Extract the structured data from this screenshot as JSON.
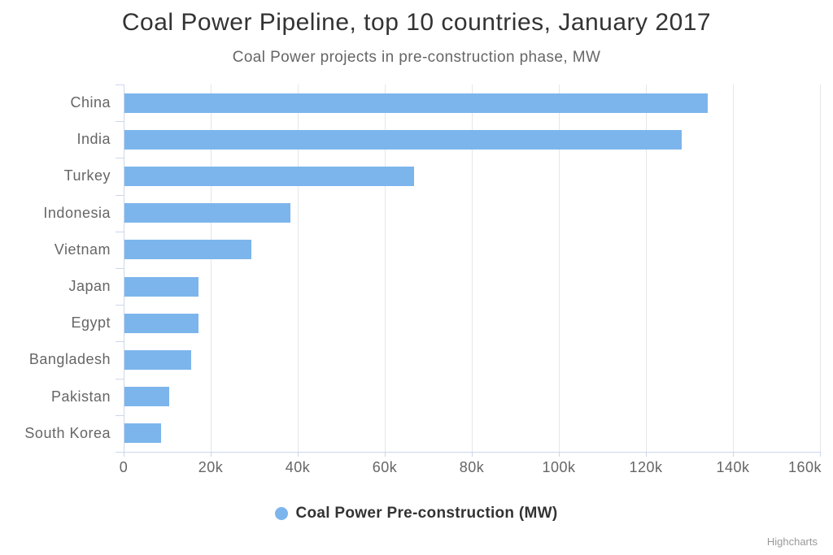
{
  "chart_data": {
    "type": "bar",
    "orientation": "horizontal",
    "title": "Coal Power Pipeline, top 10 countries, January 2017",
    "subtitle": "Coal Power projects in pre-construction phase, MW",
    "categories": [
      "China",
      "India",
      "Turkey",
      "Indonesia",
      "Vietnam",
      "Japan",
      "Egypt",
      "Bangladesh",
      "Pakistan",
      "South Korea"
    ],
    "series": [
      {
        "name": "Coal Power Pre-construction (MW)",
        "color": "#7cb5ec",
        "values": [
          134000,
          128000,
          66500,
          38200,
          29200,
          17100,
          17000,
          15400,
          10300,
          8400
        ]
      }
    ],
    "value_axis": {
      "min": 0,
      "max": 160000,
      "tick_interval": 20000,
      "tick_labels": [
        "0",
        "20k",
        "40k",
        "60k",
        "80k",
        "100k",
        "120k",
        "140k",
        "160k"
      ]
    },
    "grid": true,
    "legend_position": "bottom-center",
    "credits": "Highcharts",
    "colors": {
      "bar": "#7cb5ec",
      "grid_line": "#e6e6e6",
      "axis_line": "#ccd6eb",
      "title_text": "#333333",
      "label_text": "#666666",
      "credits_text": "#999999",
      "background": "#ffffff"
    }
  }
}
